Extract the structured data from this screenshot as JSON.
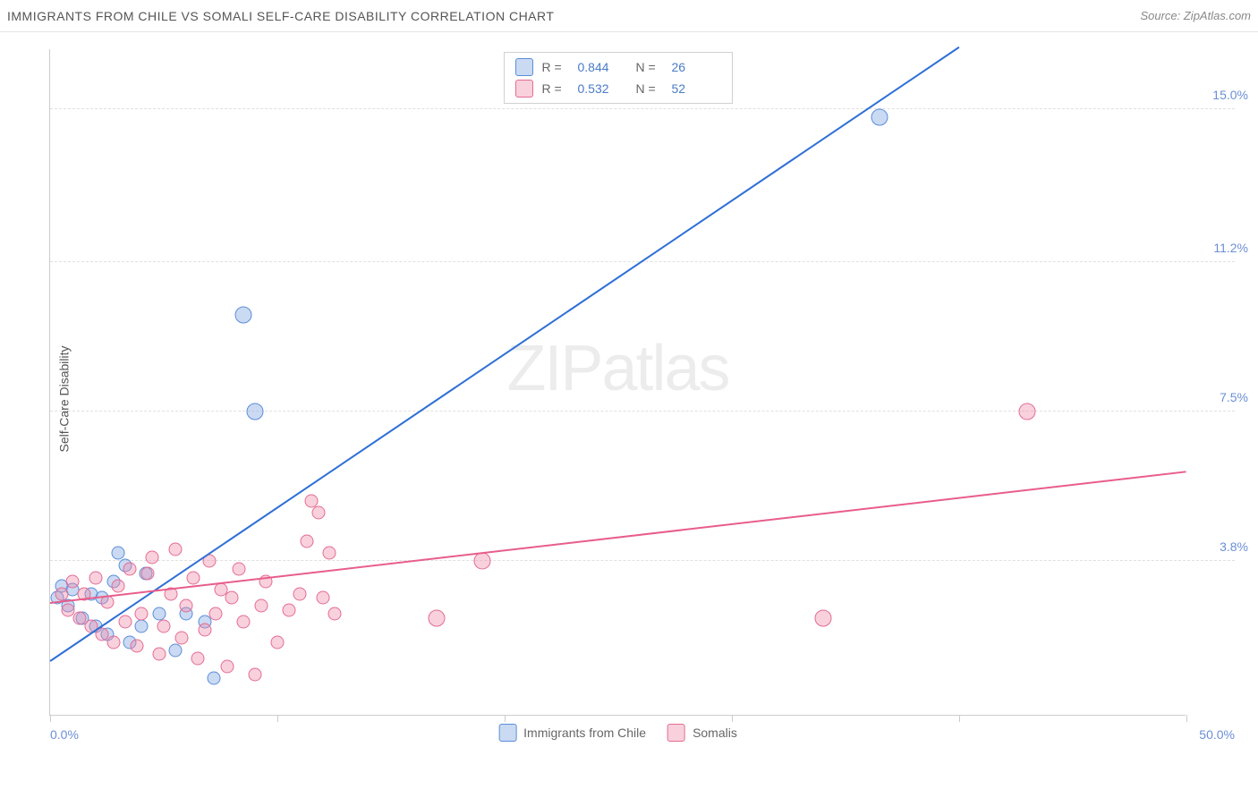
{
  "header": {
    "title": "IMMIGRANTS FROM CHILE VS SOMALI SELF-CARE DISABILITY CORRELATION CHART",
    "source": "Source: ZipAtlas.com"
  },
  "ylabel": "Self-Care Disability",
  "watermark": {
    "zip": "ZIP",
    "atlas": "atlas"
  },
  "chart": {
    "type": "scatter",
    "xlim": [
      0,
      50
    ],
    "ylim": [
      0,
      16.5
    ],
    "x_axis": {
      "label_left": "0.0%",
      "label_right": "50.0%",
      "tick_positions": [
        0,
        10,
        20,
        30,
        40,
        50
      ],
      "tick_color": "#cccccc"
    },
    "y_axis": {
      "ticks": [
        3.8,
        7.5,
        11.2,
        15.0
      ],
      "labels": [
        "3.8%",
        "7.5%",
        "11.2%",
        "15.0%"
      ],
      "label_color": "#6b8fd6",
      "grid_color": "#e0e0e0"
    },
    "background_color": "#ffffff",
    "border_color": "#cccccc",
    "series": [
      {
        "id": "chile",
        "marker_fill": "rgba(137,174,228,0.45)",
        "marker_stroke": "#5b8dd9",
        "marker_stroke_width": 1,
        "marker_radius": 7.5,
        "trend_color": "#2e6fd6",
        "trend_width": 2,
        "trend": {
          "x1": 0,
          "y1": 1.3,
          "x2": 40,
          "y2": 16.5
        },
        "R": 0.844,
        "N": 26,
        "points": [
          [
            0.3,
            2.9
          ],
          [
            0.5,
            3.2
          ],
          [
            0.8,
            2.7
          ],
          [
            1.0,
            3.1
          ],
          [
            1.4,
            2.4
          ],
          [
            1.8,
            3.0
          ],
          [
            2.0,
            2.2
          ],
          [
            2.3,
            2.9
          ],
          [
            2.5,
            2.0
          ],
          [
            2.8,
            3.3
          ],
          [
            3.0,
            4.0
          ],
          [
            3.3,
            3.7
          ],
          [
            3.5,
            1.8
          ],
          [
            4.0,
            2.2
          ],
          [
            4.2,
            3.5
          ],
          [
            4.8,
            2.5
          ],
          [
            5.5,
            1.6
          ],
          [
            6.0,
            2.5
          ],
          [
            6.8,
            2.3
          ],
          [
            7.2,
            0.9
          ],
          [
            8.5,
            9.9
          ],
          [
            9.0,
            7.5
          ],
          [
            36.5,
            14.8
          ]
        ]
      },
      {
        "id": "somalis",
        "marker_fill": "rgba(238,140,170,0.40)",
        "marker_stroke": "#e56b93",
        "marker_stroke_width": 1,
        "marker_radius": 7.5,
        "trend_color": "#e85d8a",
        "trend_width": 2,
        "trend": {
          "x1": 0,
          "y1": 2.75,
          "x2": 50,
          "y2": 6.0
        },
        "R": 0.532,
        "N": 52,
        "points": [
          [
            0.5,
            3.0
          ],
          [
            0.8,
            2.6
          ],
          [
            1.0,
            3.3
          ],
          [
            1.3,
            2.4
          ],
          [
            1.5,
            3.0
          ],
          [
            1.8,
            2.2
          ],
          [
            2.0,
            3.4
          ],
          [
            2.3,
            2.0
          ],
          [
            2.5,
            2.8
          ],
          [
            2.8,
            1.8
          ],
          [
            3.0,
            3.2
          ],
          [
            3.3,
            2.3
          ],
          [
            3.5,
            3.6
          ],
          [
            3.8,
            1.7
          ],
          [
            4.0,
            2.5
          ],
          [
            4.3,
            3.5
          ],
          [
            4.5,
            3.9
          ],
          [
            4.8,
            1.5
          ],
          [
            5.0,
            2.2
          ],
          [
            5.3,
            3.0
          ],
          [
            5.5,
            4.1
          ],
          [
            5.8,
            1.9
          ],
          [
            6.0,
            2.7
          ],
          [
            6.3,
            3.4
          ],
          [
            6.5,
            1.4
          ],
          [
            6.8,
            2.1
          ],
          [
            7.0,
            3.8
          ],
          [
            7.3,
            2.5
          ],
          [
            7.5,
            3.1
          ],
          [
            7.8,
            1.2
          ],
          [
            8.0,
            2.9
          ],
          [
            8.3,
            3.6
          ],
          [
            8.5,
            2.3
          ],
          [
            9.0,
            1.0
          ],
          [
            9.3,
            2.7
          ],
          [
            9.5,
            3.3
          ],
          [
            10.0,
            1.8
          ],
          [
            10.5,
            2.6
          ],
          [
            11.0,
            3.0
          ],
          [
            11.3,
            4.3
          ],
          [
            11.5,
            5.3
          ],
          [
            11.8,
            5.0
          ],
          [
            12.0,
            2.9
          ],
          [
            12.3,
            4.0
          ],
          [
            12.5,
            2.5
          ],
          [
            17.0,
            2.4
          ],
          [
            19.0,
            3.8
          ],
          [
            34.0,
            2.4
          ],
          [
            43.0,
            7.5
          ]
        ]
      }
    ],
    "legend_bottom": [
      {
        "swatch_fill": "rgba(137,174,228,0.45)",
        "swatch_stroke": "#5b8dd9",
        "label": "Immigrants from Chile"
      },
      {
        "swatch_fill": "rgba(238,140,170,0.40)",
        "swatch_stroke": "#e56b93",
        "label": "Somalis"
      }
    ],
    "legend_top": [
      {
        "swatch_fill": "rgba(137,174,228,0.45)",
        "swatch_stroke": "#5b8dd9",
        "R_label": "R =",
        "R": "0.844",
        "N_label": "N =",
        "N": "26"
      },
      {
        "swatch_fill": "rgba(238,140,170,0.40)",
        "swatch_stroke": "#e56b93",
        "R_label": "R =",
        "R": "0.532",
        "N_label": "N =",
        "N": "52"
      }
    ]
  }
}
